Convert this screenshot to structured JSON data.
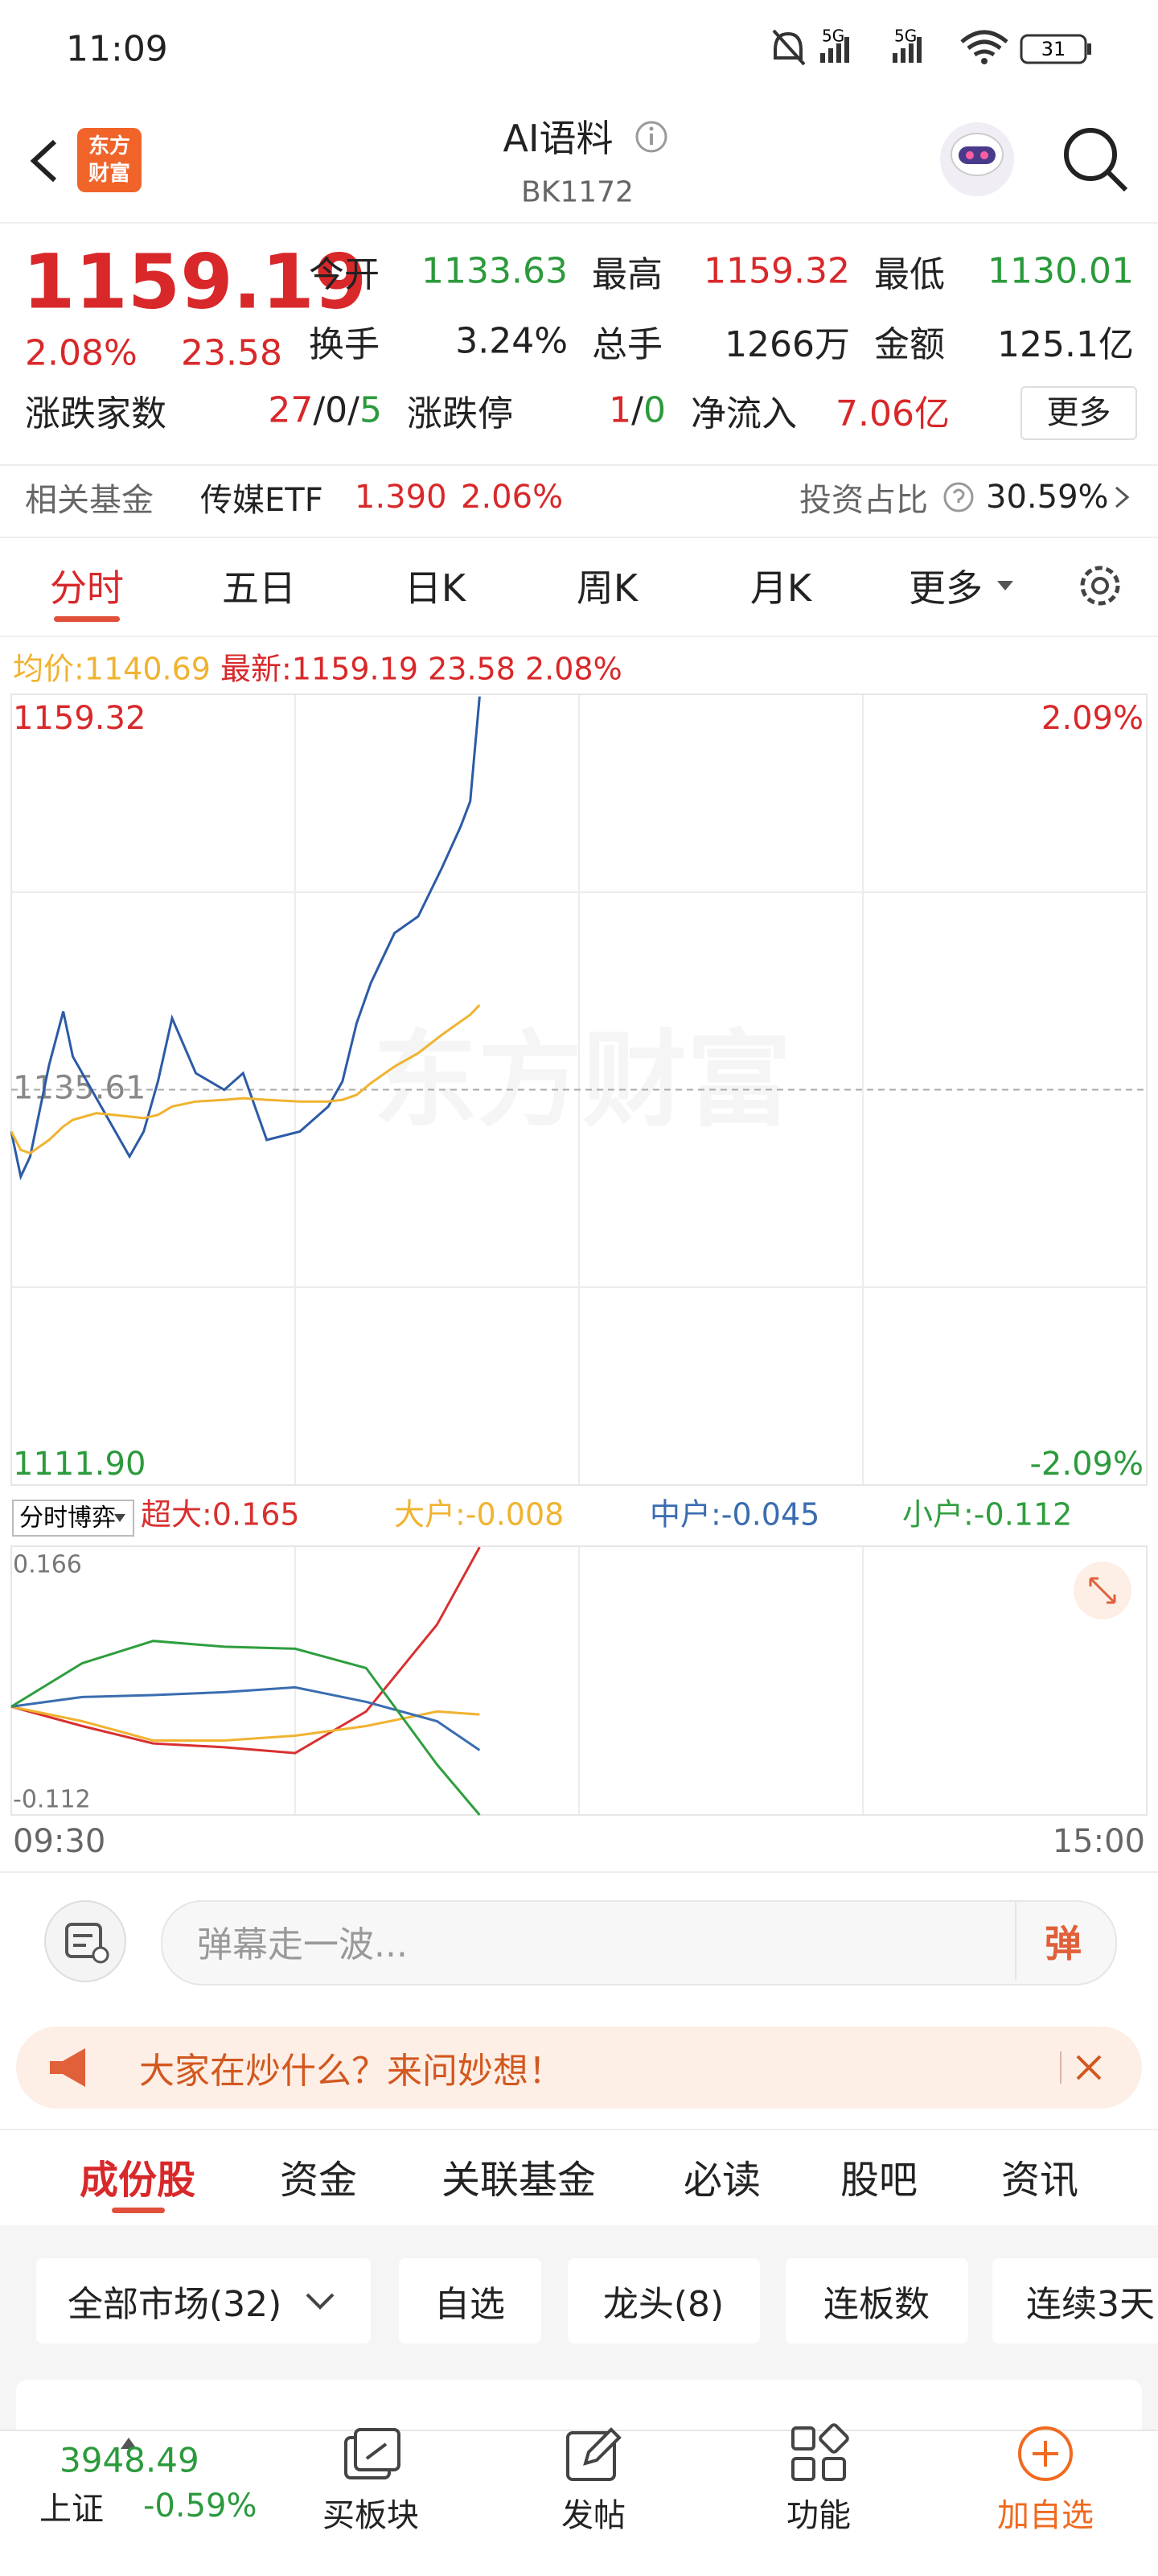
{
  "status_bar": {
    "time": "11:09",
    "network": [
      "5G",
      "5G"
    ],
    "battery": "31"
  },
  "header": {
    "logo": [
      "东方",
      "财富"
    ],
    "title": "AI语料",
    "code": "BK1172"
  },
  "quote": {
    "price": "1159.19",
    "change_pct": "2.08%",
    "change": "23.58",
    "stats": [
      {
        "label": "今开",
        "value": "1133.63"
      },
      {
        "label": "最高",
        "value": "1159.32"
      },
      {
        "label": "最低",
        "value": "1130.01"
      },
      {
        "label": "换手",
        "value": "3.24%"
      },
      {
        "label": "总手",
        "value": "1266万"
      },
      {
        "label": "金额",
        "value": "125.1亿"
      }
    ],
    "breadth": {
      "label": "涨跌家数",
      "up": "27",
      "flat": "0",
      "down": "5"
    },
    "limit": {
      "label": "涨跌停",
      "up": "1",
      "down": "0"
    },
    "net_inflow": {
      "label": "净流入",
      "value": "7.06亿"
    },
    "more": "更多"
  },
  "fund": {
    "label": "相关基金",
    "name": "传媒ETF",
    "price": "1.390",
    "change_pct": "2.06%",
    "ratio_label": "投资占比",
    "ratio": "30.59%"
  },
  "chart_tabs": [
    "分时",
    "五日",
    "日K",
    "周K",
    "月K",
    "更多"
  ],
  "chart_data": [
    {
      "type": "line",
      "watermark": "东方财富",
      "legend": {
        "avg": "均价:1140.69",
        "latest": "最新:1159.19",
        "change": "23.58",
        "change_pct": "2.08%"
      },
      "x": [
        "09:30",
        "09:32",
        "09:34",
        "09:38",
        "09:41",
        "09:43",
        "09:48",
        "09:55",
        "09:58",
        "10:01",
        "10:04",
        "10:09",
        "10:15",
        "10:19",
        "10:24",
        "10:31",
        "10:37",
        "10:40",
        "10:43",
        "10:46",
        "10:51",
        "10:56",
        "11:01",
        "11:05",
        "11:07",
        "11:09"
      ],
      "xlim": [
        "09:30",
        "15:00"
      ],
      "ylim": [
        1111.9,
        1159.32
      ],
      "yticks": [
        {
          "value": 1111.9,
          "label": "1111.90"
        },
        1135.61,
        1159.32
      ],
      "y2lim": [
        -2.09,
        2.09
      ],
      "y2ticks": [
        {
          "value": -2.09,
          "label": "-2.09%"
        },
        {
          "value": 2.09,
          "label": "2.09%"
        }
      ],
      "series": [
        {
          "color": "#2c5ba6",
          "values": [
            1133.1,
            1130.4,
            1131.6,
            1137.1,
            1140.3,
            1137.6,
            1135.1,
            1131.6,
            1133.1,
            1136.1,
            1139.9,
            1136.6,
            1135.6,
            1136.6,
            1132.6,
            1133.1,
            1134.6,
            1136.1,
            1139.6,
            1142.0,
            1145.0,
            1146.0,
            1148.9,
            1151.4,
            1152.9,
            1159.19
          ]
        },
        {
          "color": "#f0b330",
          "values": [
            1133.1,
            1132.0,
            1131.8,
            1132.6,
            1133.4,
            1133.8,
            1134.2,
            1134.0,
            1133.9,
            1134.1,
            1134.6,
            1134.9,
            1135.0,
            1135.1,
            1135.0,
            1134.9,
            1134.9,
            1135.0,
            1135.3,
            1136.0,
            1137.0,
            1137.8,
            1138.9,
            1139.7,
            1140.1,
            1140.69
          ]
        }
      ]
    },
    {
      "type": "line",
      "title": "分时博弈",
      "x": [
        "09:30",
        "09:45",
        "10:00",
        "10:15",
        "10:30",
        "10:45",
        "11:00",
        "11:09"
      ],
      "xlim": [
        "09:30",
        "15:00"
      ],
      "xticks": [
        "09:30",
        "15:00"
      ],
      "ylim": [
        -0.112,
        0.166
      ],
      "yticks": [
        -0.112,
        0.166
      ],
      "series": [
        {
          "name": "超大:0.165",
          "color": "#d93030",
          "values": [
            0,
            -0.02,
            -0.038,
            -0.042,
            -0.048,
            -0.005,
            0.085,
            0.165
          ]
        },
        {
          "name": "大户:-0.008",
          "color": "#f0b330",
          "values": [
            0,
            -0.015,
            -0.035,
            -0.035,
            -0.03,
            -0.02,
            -0.005,
            -0.008
          ]
        },
        {
          "name": "中户:-0.045",
          "color": "#3a6db0",
          "values": [
            0,
            0.01,
            0.012,
            0.015,
            0.02,
            0.005,
            -0.015,
            -0.045
          ]
        },
        {
          "name": "小户:-0.112",
          "color": "#2e9e3e",
          "values": [
            0,
            0.045,
            0.068,
            0.062,
            0.06,
            0.04,
            -0.06,
            -0.112
          ]
        }
      ]
    }
  ],
  "comment": {
    "placeholder": "弹幕走一波...",
    "button": "弹"
  },
  "banner": "大家在炒什么？来问妙想！",
  "section_tabs": [
    "成份股",
    "资金",
    "关联基金",
    "必读",
    "股吧",
    "资讯"
  ],
  "filters": [
    "全部市场(32)",
    "自选",
    "龙头(8)",
    "连板数",
    "连续3天"
  ],
  "bottom_nav": {
    "index": {
      "value": "3948.49",
      "name": "上证",
      "change_pct": "-0.59%"
    },
    "items": [
      "买板块",
      "发帖",
      "功能",
      "加自选"
    ]
  }
}
